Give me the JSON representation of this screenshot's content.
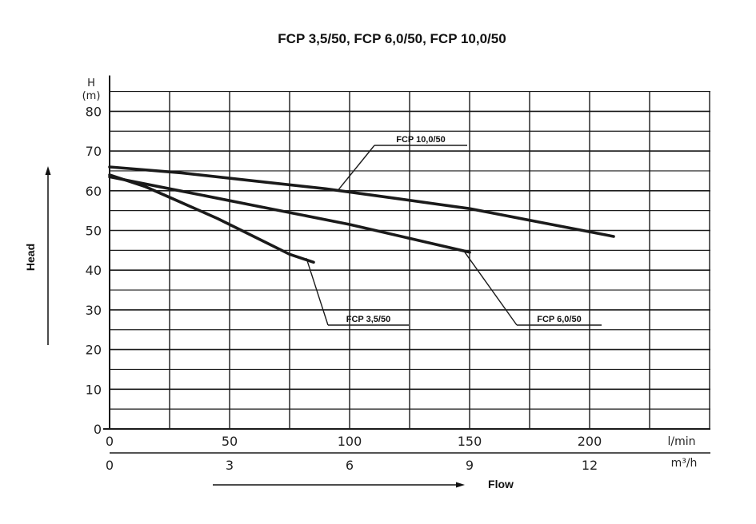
{
  "chart_data": {
    "type": "line",
    "title": "FCP 3,5/50, FCP 6,0/50, FCP 10,0/50",
    "ylabel": "Head",
    "ylabel_unit_line1": "H",
    "ylabel_unit_line2": "(m)",
    "xlabel": "Flow",
    "x_unit": "l/min",
    "x2_unit": "m³/h",
    "xlim": [
      0,
      250
    ],
    "ylim": [
      0,
      85
    ],
    "y_ticks": [
      0,
      10,
      20,
      30,
      40,
      50,
      60,
      70,
      80
    ],
    "x_ticks": [
      0,
      50,
      100,
      150,
      200
    ],
    "x2_ticks": [
      {
        "label": "0",
        "flow": 0
      },
      {
        "label": "3",
        "flow": 50
      },
      {
        "label": "6",
        "flow": 100
      },
      {
        "label": "9",
        "flow": 150
      },
      {
        "label": "12",
        "flow": 200
      }
    ],
    "grid": true,
    "series": [
      {
        "name": "FCP 3,5/50",
        "x": [
          0,
          15,
          30,
          45,
          55,
          65,
          75,
          85
        ],
        "y": [
          64,
          61,
          57,
          53,
          50,
          47,
          44,
          42
        ]
      },
      {
        "name": "FCP 6,0/50",
        "x": [
          0,
          25,
          50,
          75,
          100,
          125,
          150
        ],
        "y": [
          63.5,
          60.5,
          57.5,
          54.5,
          51.5,
          48,
          44.5
        ]
      },
      {
        "name": "FCP 10,0/50",
        "x": [
          0,
          30,
          60,
          90,
          120,
          150,
          180,
          210
        ],
        "y": [
          66,
          64.5,
          62.5,
          60.5,
          58,
          55.5,
          52,
          48.5
        ]
      }
    ],
    "annotations": [
      {
        "series": "FCP 10,0/50",
        "text": "FCP 10,0/50",
        "point": [
          95,
          60
        ]
      },
      {
        "series": "FCP 3,5/50",
        "text": "FCP 3,5/50",
        "point": [
          82,
          43
        ]
      },
      {
        "series": "FCP 6,0/50",
        "text": "FCP 6,0/50",
        "point": [
          148,
          44.5
        ]
      }
    ],
    "colors": {
      "line": "#1a1a1a",
      "grid": "#1a1a1a"
    }
  }
}
